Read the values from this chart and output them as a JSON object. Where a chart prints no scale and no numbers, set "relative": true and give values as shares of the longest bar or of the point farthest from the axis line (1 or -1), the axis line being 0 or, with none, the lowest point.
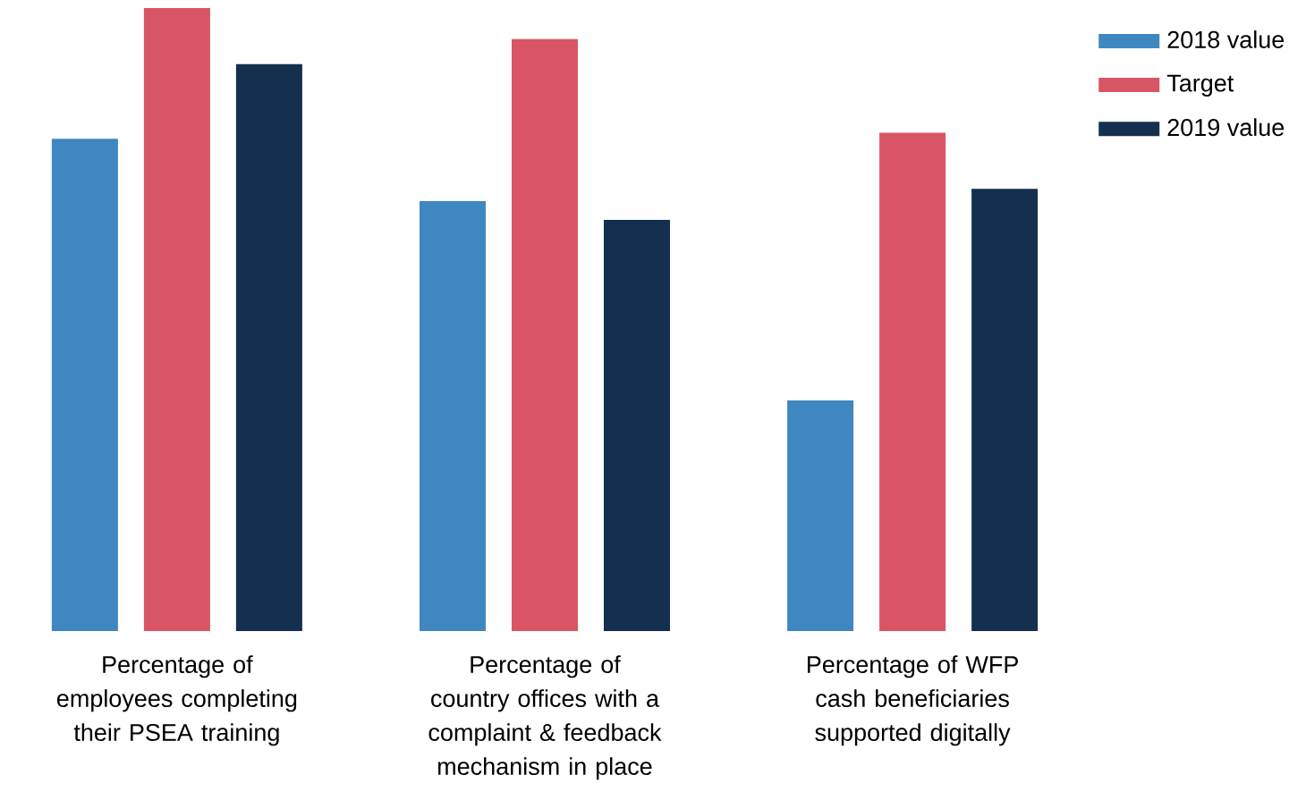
{
  "chart_data": {
    "type": "bar",
    "relative": true,
    "legend": "top right",
    "categories": [
      "Percentage of employees completing their PSEA training",
      "Percentage of country offices with a complaint & feedback mechanism in place",
      "Percentage of WFP cash beneficiaries supported digitally"
    ],
    "series": [
      {
        "name": "2018 value",
        "color": "#3f87c1",
        "values": [
          0.79,
          0.69,
          0.37
        ]
      },
      {
        "name": "Target",
        "color": "#d85566",
        "values": [
          1.0,
          0.95,
          0.8
        ]
      },
      {
        "name": "2019 value",
        "color": "#14304e",
        "values": [
          0.91,
          0.66,
          0.71
        ]
      }
    ]
  }
}
